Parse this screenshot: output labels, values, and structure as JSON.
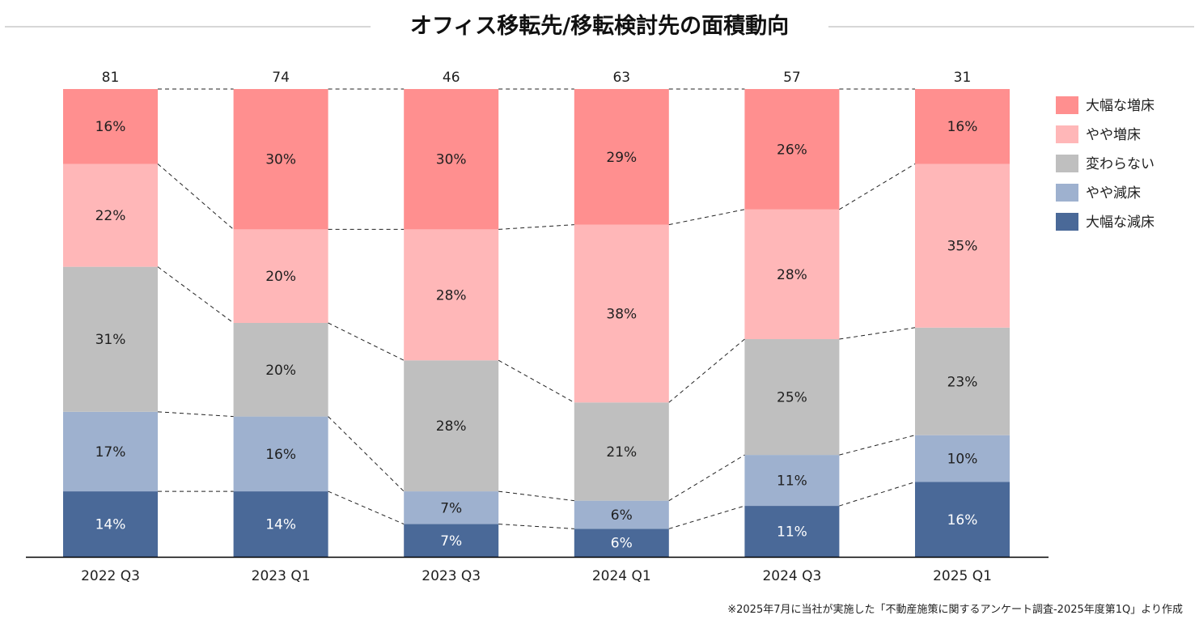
{
  "title": "オフィス移転先/移転検討先の面積動向",
  "source_note": "※2025年7月に当社が実施した「不動産施策に関するアンケート調査-2025年度第1Q」より作成",
  "chart_data": {
    "type": "bar",
    "stacked": "percent",
    "categories": [
      "2022 Q3",
      "2023 Q1",
      "2023 Q3",
      "2024 Q1",
      "2024 Q3",
      "2025 Q1"
    ],
    "totals": [
      81,
      74,
      46,
      63,
      57,
      31
    ],
    "series": [
      {
        "name": "大幅な減床",
        "color": "#4a6998",
        "values": [
          14,
          14,
          7,
          6,
          11,
          16
        ]
      },
      {
        "name": "やや減床",
        "color": "#9eb1cf",
        "values": [
          17,
          16,
          7,
          6,
          11,
          10
        ]
      },
      {
        "name": "変わらない",
        "color": "#bfbfbf",
        "values": [
          31,
          20,
          28,
          21,
          25,
          23
        ]
      },
      {
        "name": "やや増床",
        "color": "#ffb7b8",
        "values": [
          22,
          20,
          28,
          38,
          28,
          35
        ]
      },
      {
        "name": "大幅な増床",
        "color": "#ff8f8f",
        "values": [
          16,
          30,
          30,
          29,
          26,
          16
        ]
      }
    ],
    "value_suffix": "%",
    "legend_position": "right",
    "connector_lines": "dashed",
    "grid": false
  }
}
